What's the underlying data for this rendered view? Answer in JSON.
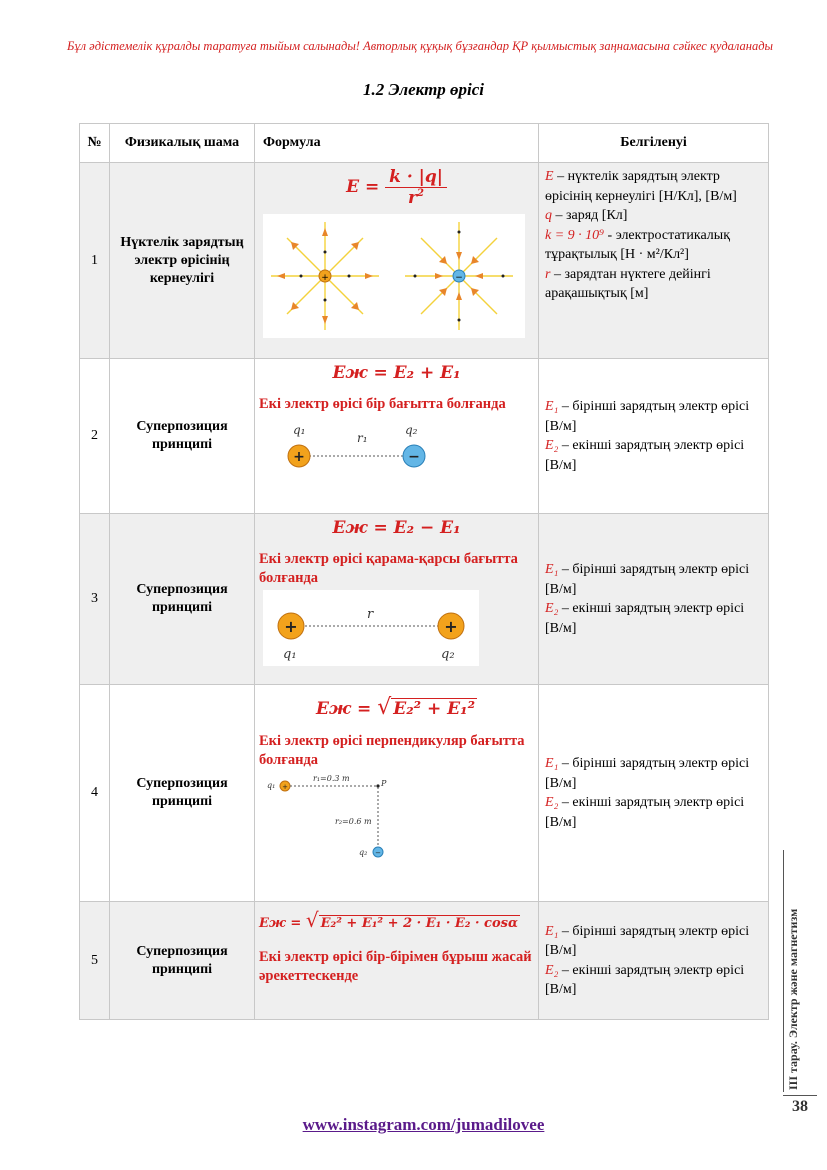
{
  "banner": "Бұл әдістемелік құралды таратуға тыйым салынады! Авторлық құқық бұзғандар ҚР қылмыстық заңнамасына сәйкес қудаланады",
  "title": "1.2 Электр өрісі",
  "table": {
    "headers": [
      "№",
      "Физикалық шама",
      "Формула",
      "Белгіленуі"
    ],
    "rows": [
      {
        "num": "1",
        "quantity": "Нүктелік зарядтың электр өрісінің кернеулігі",
        "formula_lhs": "E =",
        "formula_num": "k · |q|",
        "formula_den": "r",
        "formula_den_exp": "2",
        "desc": [
          {
            "sym": "E",
            "text": " – нүктелік зарядтың электр өрісінің кернеулігі [Н/Кл], [В/м]"
          },
          {
            "sym": "q",
            "text": " – заряд [Кл]"
          },
          {
            "sym": "k = 9 · 10⁹",
            "text": " - электростатикалық тұрақтылық [Н · м²/Кл²]"
          },
          {
            "sym": "r",
            "text": " – зарядтан нүктеге дейінгі арақашықтық [м]"
          }
        ],
        "fig_plus": "+",
        "fig_minus": "−"
      },
      {
        "num": "2",
        "quantity": "Суперпозиция принципі",
        "formula": "Eж = E₂ + E₁",
        "note": "Екі электр өрісі бір бағытта болғанда",
        "fig_q1": "q₁",
        "fig_q2": "q₂",
        "fig_r": "r₁",
        "fig_plus": "+",
        "fig_minus": "−",
        "desc1": " – бірінші зарядтың электр өрісі [В/м]",
        "desc2": " – екінші зарядтың электр өрісі [В/м]"
      },
      {
        "num": "3",
        "quantity": "Суперпозиция принципі",
        "formula": "Eж = E₂ − E₁",
        "note": "Екі электр өрісі қарама-қарсы бағытта болғанда",
        "fig_q1": "q₁",
        "fig_q2": "q₂",
        "fig_r": "r",
        "fig_plus": "+",
        "desc1": " – бірінші зарядтың электр өрісі [В/м]",
        "desc2": " – екінші зарядтың электр өрісі [В/м]"
      },
      {
        "num": "4",
        "quantity": "Суперпозиция принципі",
        "formula_lhs": "Eж =",
        "formula_rad": "E₂² + E₁²",
        "note": "Екі электр өрісі перпендикуляр бағытта болғанда",
        "fig_q1": "q₁",
        "fig_q2": "q₂",
        "fig_r1": "r₁=0.3 m",
        "fig_r2": "r₂=0.6 m",
        "fig_p": "P",
        "fig_plus": "+",
        "fig_minus": "−",
        "desc1": " – бірінші зарядтың электр өрісі [В/м]",
        "desc2": " – екінші зарядтың электр өрісі [В/м]"
      },
      {
        "num": "5",
        "quantity": "Суперпозиция принципі",
        "formula_lhs": "Eж =",
        "formula_rad": "E₂² + E₁² + 2 · E₁ · E₂ · cosα",
        "note": "Екі электр өрісі бір-бірімен бұрыш жасай әрекеттескенде",
        "desc1": " – бірінші зарядтың электр өрісі [В/м]",
        "desc2": " – екінші зарядтың электр өрісі [В/м]"
      }
    ],
    "sym_E1": "E₁",
    "sym_E2": "E₂"
  },
  "side_label": "III тарау. Электр және магнетизм",
  "page_number": "38",
  "footer_link": "www.instagram.com/jumadilovee",
  "colors": {
    "accent_red": "#d42020",
    "footer_purple": "#5a1a8a",
    "row_shade": "#efefef"
  }
}
